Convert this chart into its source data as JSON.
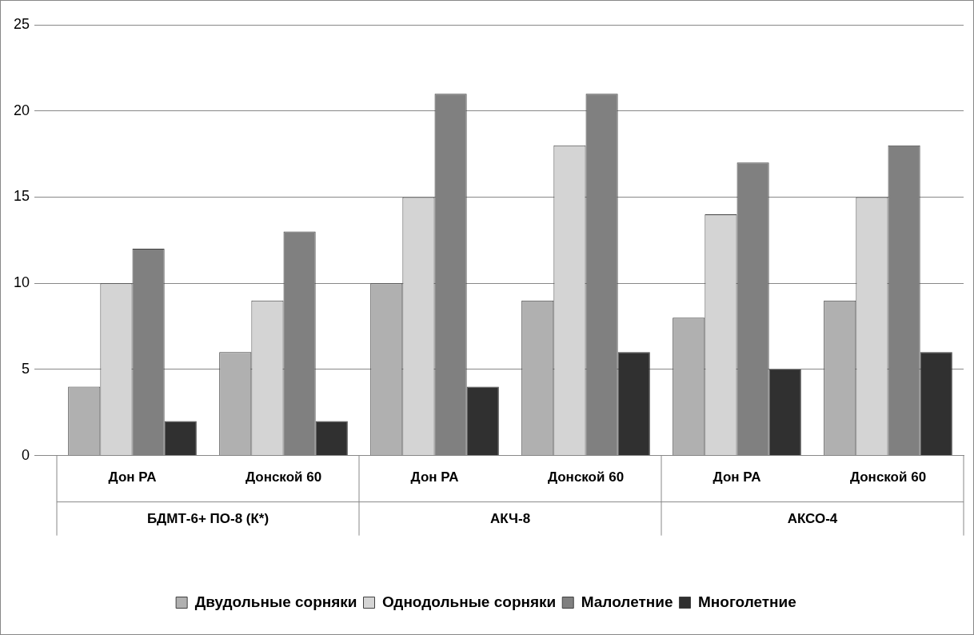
{
  "chart_data": {
    "type": "bar",
    "categories": [
      "Дон РА",
      "Донской 60",
      "Дон РА",
      "Донской 60",
      "Дон РА",
      "Донской 60"
    ],
    "annotations": [
      "БДМТ-6+ ПО-8 (К*)",
      "АКЧ-8",
      "АКСО-4"
    ],
    "series": [
      {
        "name": "Двудольные сорняки",
        "color": "#b0b0b0",
        "values": [
          4,
          6,
          10,
          9,
          8,
          9
        ]
      },
      {
        "name": "Однодольные сорняки",
        "color": "#d4d4d4",
        "values": [
          10,
          9,
          15,
          18,
          14,
          15
        ]
      },
      {
        "name": "Малолетние",
        "color": "#808080",
        "values": [
          12,
          13,
          21,
          21,
          17,
          18
        ]
      },
      {
        "name": "Многолетние",
        "color": "#303030",
        "values": [
          2,
          2,
          4,
          6,
          5,
          6
        ]
      }
    ],
    "ylim": [
      0,
      25
    ],
    "yticks": [
      0,
      5,
      10,
      15,
      20,
      25
    ],
    "grid": "y",
    "legend": "bottom"
  }
}
